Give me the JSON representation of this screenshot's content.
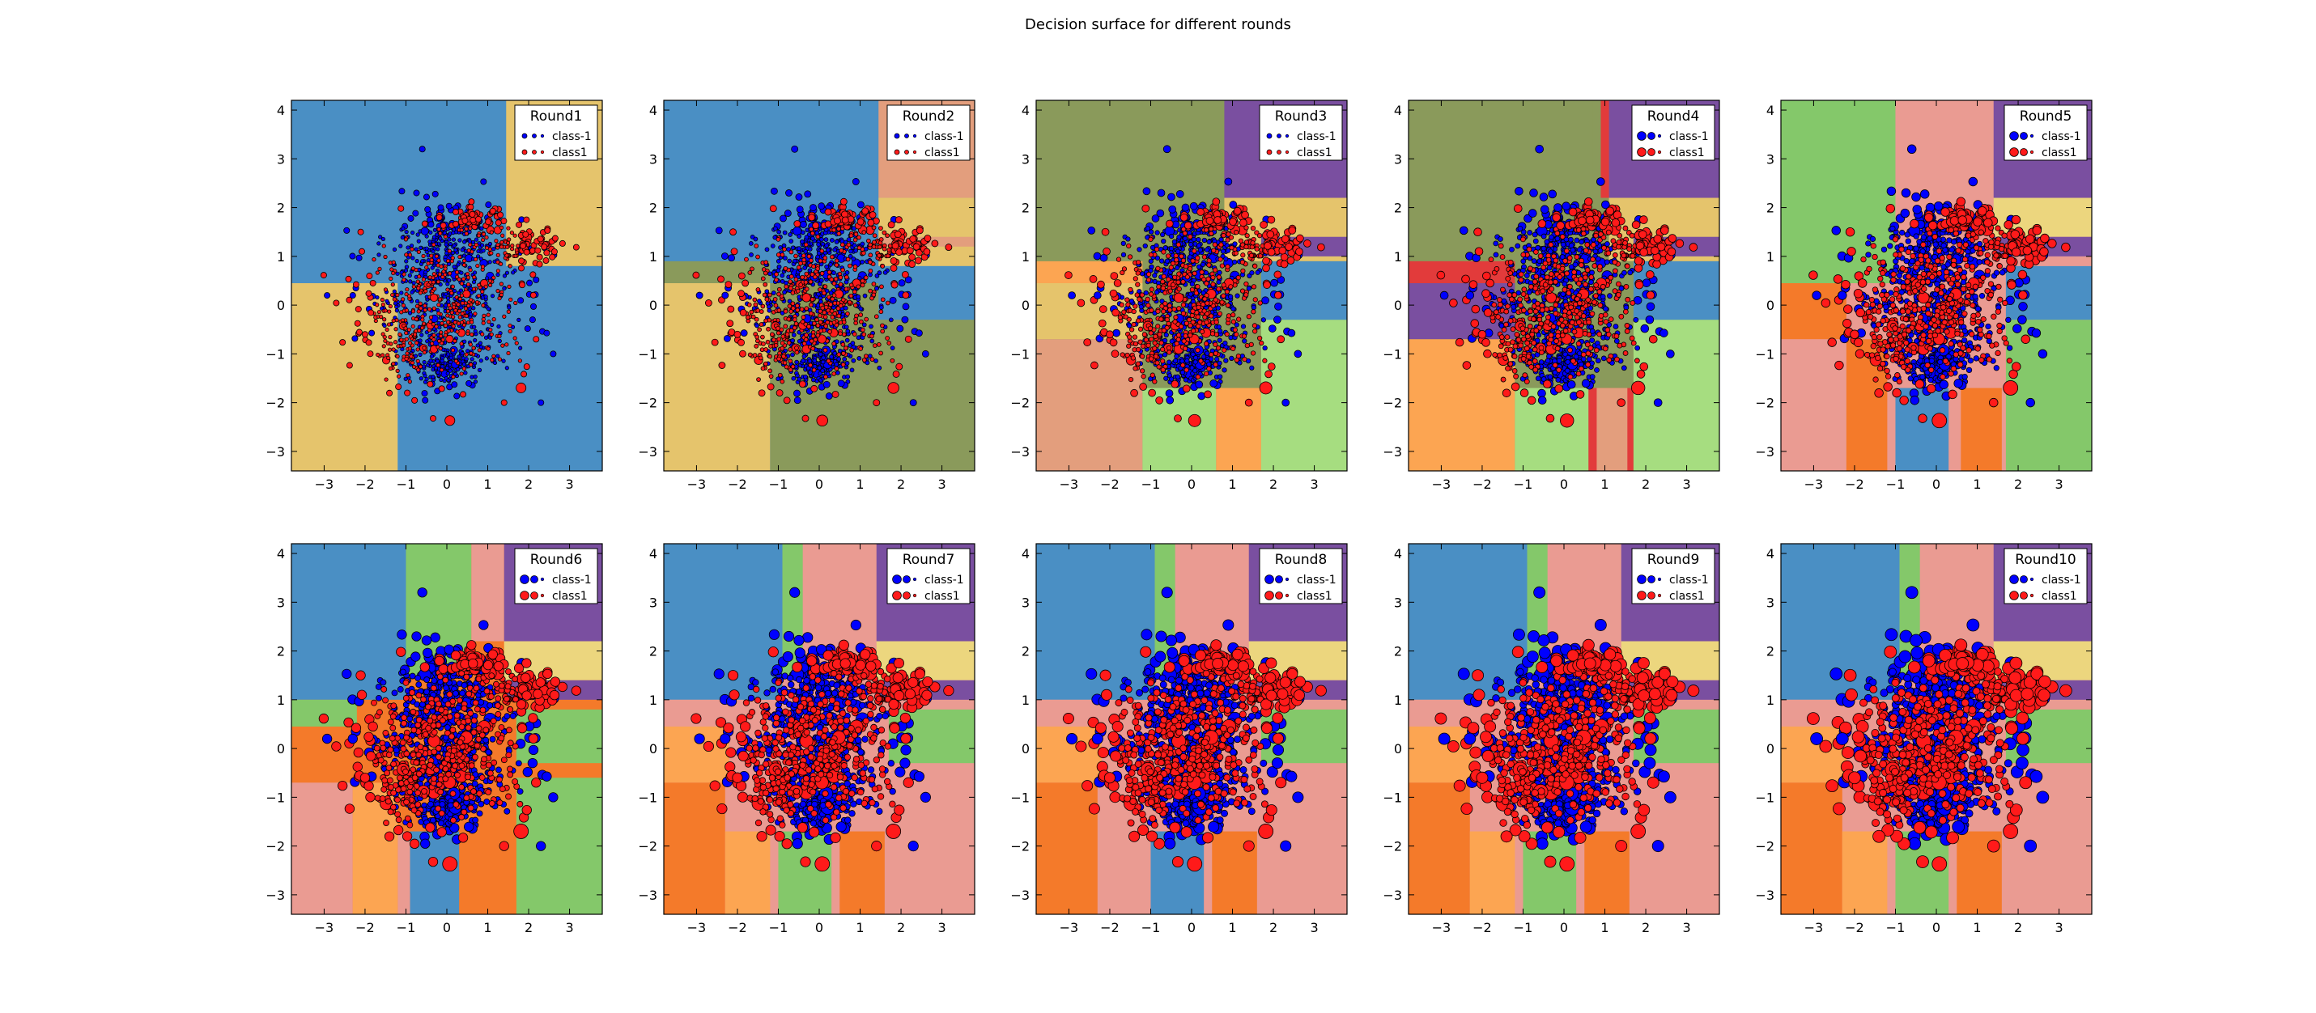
{
  "figure": {
    "title": "Decision surface for different rounds"
  },
  "colors": {
    "class_neg": "#0000ff",
    "class_pos": "#ff1a1a",
    "region_blue": "#4a8fc4",
    "region_tan": "#e5c46c",
    "region_olive": "#8a9a5b",
    "region_purple": "#7a4fa0",
    "region_lightgreen": "#a6dd80",
    "region_green": "#84c86a",
    "region_orange": "#fca552",
    "region_salmon": "#e39e7d",
    "region_pink": "#ea9b92",
    "region_red": "#e23b3b",
    "region_darkorange": "#f47a2a",
    "region_yellow": "#ecd67e"
  },
  "chart_data": [
    {
      "type": "scatter",
      "title": "Round1",
      "xlim": [
        -3.8,
        3.8
      ],
      "ylim": [
        -3.4,
        4.2
      ],
      "xticks": [
        -3,
        -2,
        -1,
        0,
        1,
        2,
        3
      ],
      "yticks": [
        -3,
        -2,
        -1,
        0,
        1,
        2,
        3,
        4
      ],
      "legend": {
        "title": "Round1",
        "placement": "top-right",
        "entries": [
          "class-1",
          "class1"
        ]
      },
      "series": [
        {
          "name": "class-1",
          "color": "#0000ff"
        },
        {
          "name": "class1",
          "color": "#ff1a1a"
        }
      ]
    },
    {
      "type": "scatter",
      "title": "Round2",
      "xlim": [
        -3.8,
        3.8
      ],
      "ylim": [
        -3.4,
        4.2
      ],
      "xticks": [
        -3,
        -2,
        -1,
        0,
        1,
        2,
        3
      ],
      "yticks": [
        -3,
        -2,
        -1,
        0,
        1,
        2,
        3,
        4
      ],
      "legend": {
        "title": "Round2",
        "placement": "top-right",
        "entries": [
          "class-1",
          "class1"
        ]
      },
      "series": [
        {
          "name": "class-1",
          "color": "#0000ff"
        },
        {
          "name": "class1",
          "color": "#ff1a1a"
        }
      ]
    },
    {
      "type": "scatter",
      "title": "Round3",
      "xlim": [
        -3.8,
        3.8
      ],
      "ylim": [
        -3.4,
        4.2
      ],
      "xticks": [
        -3,
        -2,
        -1,
        0,
        1,
        2,
        3
      ],
      "yticks": [
        -3,
        -2,
        -1,
        0,
        1,
        2,
        3,
        4
      ],
      "legend": {
        "title": "Round3",
        "placement": "top-right",
        "entries": [
          "class-1",
          "class1"
        ]
      },
      "series": [
        {
          "name": "class-1",
          "color": "#0000ff"
        },
        {
          "name": "class1",
          "color": "#ff1a1a"
        }
      ]
    },
    {
      "type": "scatter",
      "title": "Round4",
      "xlim": [
        -3.8,
        3.8
      ],
      "ylim": [
        -3.4,
        4.2
      ],
      "xticks": [
        -3,
        -2,
        -1,
        0,
        1,
        2,
        3
      ],
      "yticks": [
        -3,
        -2,
        -1,
        0,
        1,
        2,
        3,
        4
      ],
      "legend": {
        "title": "Round4",
        "placement": "top-right",
        "entries": [
          "class-1",
          "class1"
        ]
      },
      "series": [
        {
          "name": "class-1",
          "color": "#0000ff"
        },
        {
          "name": "class1",
          "color": "#ff1a1a"
        }
      ]
    },
    {
      "type": "scatter",
      "title": "Round5",
      "xlim": [
        -3.8,
        3.8
      ],
      "ylim": [
        -3.4,
        4.2
      ],
      "xticks": [
        -3,
        -2,
        -1,
        0,
        1,
        2,
        3
      ],
      "yticks": [
        -3,
        -2,
        -1,
        0,
        1,
        2,
        3,
        4
      ],
      "legend": {
        "title": "Round5",
        "placement": "top-right",
        "entries": [
          "class-1",
          "class1"
        ]
      },
      "series": [
        {
          "name": "class-1",
          "color": "#0000ff"
        },
        {
          "name": "class1",
          "color": "#ff1a1a"
        }
      ]
    },
    {
      "type": "scatter",
      "title": "Round6",
      "xlim": [
        -3.8,
        3.8
      ],
      "ylim": [
        -3.4,
        4.2
      ],
      "xticks": [
        -3,
        -2,
        -1,
        0,
        1,
        2,
        3
      ],
      "yticks": [
        -3,
        -2,
        -1,
        0,
        1,
        2,
        3,
        4
      ],
      "legend": {
        "title": "Round6",
        "placement": "top-right",
        "entries": [
          "class-1",
          "class1"
        ]
      },
      "series": [
        {
          "name": "class-1",
          "color": "#0000ff"
        },
        {
          "name": "class1",
          "color": "#ff1a1a"
        }
      ]
    },
    {
      "type": "scatter",
      "title": "Round7",
      "xlim": [
        -3.8,
        3.8
      ],
      "ylim": [
        -3.4,
        4.2
      ],
      "xticks": [
        -3,
        -2,
        -1,
        0,
        1,
        2,
        3
      ],
      "yticks": [
        -3,
        -2,
        -1,
        0,
        1,
        2,
        3,
        4
      ],
      "legend": {
        "title": "Round7",
        "placement": "top-right",
        "entries": [
          "class-1",
          "class1"
        ]
      },
      "series": [
        {
          "name": "class-1",
          "color": "#0000ff"
        },
        {
          "name": "class1",
          "color": "#ff1a1a"
        }
      ]
    },
    {
      "type": "scatter",
      "title": "Round8",
      "xlim": [
        -3.8,
        3.8
      ],
      "ylim": [
        -3.4,
        4.2
      ],
      "xticks": [
        -3,
        -2,
        -1,
        0,
        1,
        2,
        3
      ],
      "yticks": [
        -3,
        -2,
        -1,
        0,
        1,
        2,
        3,
        4
      ],
      "legend": {
        "title": "Round8",
        "placement": "top-right",
        "entries": [
          "class-1",
          "class1"
        ]
      },
      "series": [
        {
          "name": "class-1",
          "color": "#0000ff"
        },
        {
          "name": "class1",
          "color": "#ff1a1a"
        }
      ]
    },
    {
      "type": "scatter",
      "title": "Round9",
      "xlim": [
        -3.8,
        3.8
      ],
      "ylim": [
        -3.4,
        4.2
      ],
      "xticks": [
        -3,
        -2,
        -1,
        0,
        1,
        2,
        3
      ],
      "yticks": [
        -3,
        -2,
        -1,
        0,
        1,
        2,
        3,
        4
      ],
      "legend": {
        "title": "Round9",
        "placement": "top-right",
        "entries": [
          "class-1",
          "class1"
        ]
      },
      "series": [
        {
          "name": "class-1",
          "color": "#0000ff"
        },
        {
          "name": "class1",
          "color": "#ff1a1a"
        }
      ]
    },
    {
      "type": "scatter",
      "title": "Round10",
      "xlim": [
        -3.8,
        3.8
      ],
      "ylim": [
        -3.4,
        4.2
      ],
      "xticks": [
        -3,
        -2,
        -1,
        0,
        1,
        2,
        3
      ],
      "yticks": [
        -3,
        -2,
        -1,
        0,
        1,
        2,
        3,
        4
      ],
      "legend": {
        "title": "Round10",
        "placement": "top-right",
        "entries": [
          "class-1",
          "class1"
        ]
      },
      "series": [
        {
          "name": "class-1",
          "color": "#0000ff"
        },
        {
          "name": "class1",
          "color": "#ff1a1a"
        }
      ]
    }
  ]
}
